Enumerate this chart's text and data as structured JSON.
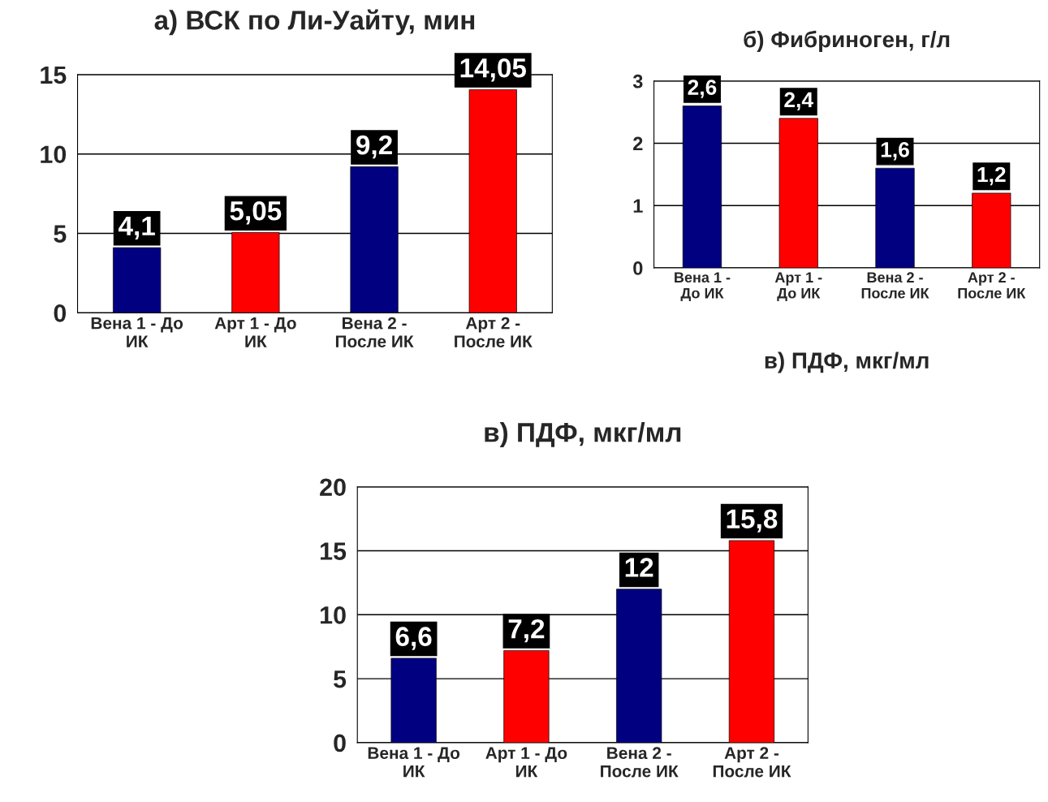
{
  "chart_data": [
    {
      "type": "bar",
      "title": "а) ВСК по Ли-Уайту, мин",
      "categories": [
        "Вена 1 - До\nИК",
        "Арт 1 - До\nИК",
        "Вена 2 -\nПосле ИК",
        "Арт 2 -\nПосле ИК"
      ],
      "values": [
        4.1,
        5.05,
        9.2,
        14.05
      ],
      "value_labels": [
        "4,1",
        "5,05",
        "9,2",
        "14,05"
      ],
      "colors": [
        "#000080",
        "#ff0000",
        "#000080",
        "#ff0000"
      ],
      "ylim": [
        0,
        15
      ],
      "yticks": [
        0,
        5,
        10,
        15
      ],
      "grid": "y"
    },
    {
      "type": "bar",
      "title": "б) Фибриноген, г/л",
      "categories": [
        "Вена 1 -\nДо ИК",
        "Арт 1 -\nДо ИК",
        "Вена 2 -\nПосле ИК",
        "Арт 2 -\nПосле ИК"
      ],
      "values": [
        2.6,
        2.4,
        1.6,
        1.2
      ],
      "value_labels": [
        "2,6",
        "2,4",
        "1,6",
        "1,2"
      ],
      "colors": [
        "#000080",
        "#ff0000",
        "#000080",
        "#ff0000"
      ],
      "ylim": [
        0,
        3
      ],
      "yticks": [
        0,
        1,
        2,
        3
      ],
      "grid": "y",
      "annotations": [
        "в) ПДФ, мкг/мл"
      ]
    },
    {
      "type": "bar",
      "title": "в) ПДФ, мкг/мл",
      "categories": [
        "Вена 1 - До\nИК",
        "Арт 1 - До\nИК",
        "Вена 2 -\nПосле ИК",
        "Арт 2 -\nПосле ИК"
      ],
      "values": [
        6.6,
        7.2,
        12,
        15.8
      ],
      "value_labels": [
        "6,6",
        "7,2",
        "12",
        "15,8"
      ],
      "colors": [
        "#000080",
        "#ff0000",
        "#000080",
        "#ff0000"
      ],
      "ylim": [
        0,
        20
      ],
      "yticks": [
        0,
        5,
        10,
        15,
        20
      ],
      "grid": "y"
    }
  ]
}
